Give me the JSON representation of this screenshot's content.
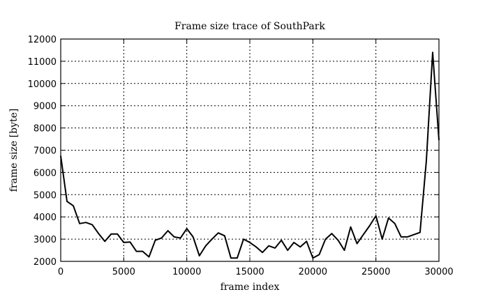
{
  "chart_data": {
    "type": "line",
    "title": "Frame size trace of SouthPark",
    "xlabel": "frame index",
    "ylabel": "frame size [byte]",
    "xlim": [
      0,
      30000
    ],
    "ylim": [
      2000,
      12000
    ],
    "xticks": [
      0,
      5000,
      10000,
      15000,
      20000,
      25000,
      30000
    ],
    "yticks": [
      2000,
      3000,
      4000,
      5000,
      6000,
      7000,
      8000,
      9000,
      10000,
      11000,
      12000
    ],
    "grid": true,
    "legend": "none",
    "series": [
      {
        "color": "#000000",
        "x": [
          0,
          500,
          1000,
          1500,
          2000,
          2500,
          3000,
          3500,
          4000,
          4500,
          5000,
          5500,
          6000,
          6500,
          7000,
          7500,
          8000,
          8500,
          9000,
          9500,
          10000,
          10500,
          11000,
          11500,
          12000,
          12500,
          13000,
          13500,
          14000,
          14500,
          15000,
          15500,
          16000,
          16500,
          17000,
          17500,
          18000,
          18500,
          19000,
          19500,
          20000,
          20500,
          21000,
          21500,
          22000,
          22500,
          23000,
          23500,
          24000,
          24500,
          25000,
          25500,
          26000,
          26500,
          27000,
          27500,
          28000,
          28500,
          29000,
          29500,
          30000
        ],
        "y": [
          6750,
          4700,
          4500,
          3700,
          3750,
          3650,
          3250,
          2900,
          3230,
          3230,
          2850,
          2870,
          2450,
          2450,
          2200,
          2950,
          3050,
          3380,
          3100,
          3050,
          3470,
          3100,
          2250,
          2700,
          3000,
          3280,
          3150,
          2150,
          2150,
          3000,
          2850,
          2650,
          2400,
          2700,
          2600,
          2950,
          2500,
          2850,
          2650,
          2900,
          2150,
          2300,
          3000,
          3250,
          2950,
          2500,
          3550,
          2800,
          3200,
          3600,
          4050,
          3000,
          3950,
          3700,
          3100,
          3100,
          3200,
          3300,
          6500,
          11400,
          7450
        ]
      }
    ]
  }
}
